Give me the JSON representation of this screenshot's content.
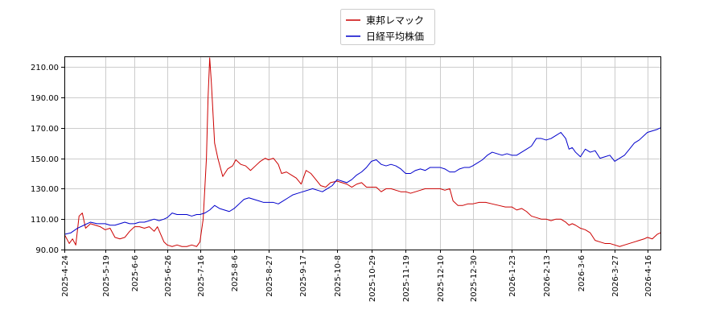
{
  "chart_data": {
    "type": "line",
    "title": "",
    "xlabel": "",
    "ylabel": "",
    "ylim": [
      90,
      217
    ],
    "xlim": [
      "2025-04-24",
      "2026-04-24"
    ],
    "grid": true,
    "legend_position": "top-center",
    "yticks": [
      90,
      110,
      130,
      150,
      170,
      190,
      210
    ],
    "ytick_labels": [
      "90.00",
      "110.00",
      "130.00",
      "150.00",
      "170.00",
      "190.00",
      "210.00"
    ],
    "xtick_labels": [
      "2025-4-24",
      "2025-5-19",
      "2025-6-6",
      "2025-6-26",
      "2025-7-16",
      "2025-8-6",
      "2025-8-27",
      "2025-9-17",
      "2025-10-8",
      "2025-10-29",
      "2025-11-19",
      "2025-12-10",
      "2025-12-30",
      "2026-1-23",
      "2026-2-13",
      "2026-3-6",
      "2026-3-27",
      "2026-4-16"
    ],
    "series": [
      {
        "name": "東邦レマック",
        "color": "#cc0000",
        "points": [
          [
            "2025-04-24",
            100
          ],
          [
            "2025-04-27",
            94
          ],
          [
            "2025-04-29",
            97
          ],
          [
            "2025-05-01",
            93
          ],
          [
            "2025-05-03",
            112
          ],
          [
            "2025-05-05",
            114
          ],
          [
            "2025-05-07",
            104
          ],
          [
            "2025-05-10",
            107
          ],
          [
            "2025-05-13",
            106
          ],
          [
            "2025-05-16",
            105
          ],
          [
            "2025-05-19",
            103
          ],
          [
            "2025-05-22",
            104
          ],
          [
            "2025-05-25",
            98
          ],
          [
            "2025-05-28",
            97
          ],
          [
            "2025-05-31",
            98
          ],
          [
            "2025-06-03",
            102
          ],
          [
            "2025-06-06",
            105
          ],
          [
            "2025-06-09",
            105
          ],
          [
            "2025-06-12",
            104
          ],
          [
            "2025-06-15",
            105
          ],
          [
            "2025-06-18",
            102
          ],
          [
            "2025-06-20",
            105
          ],
          [
            "2025-06-22",
            100
          ],
          [
            "2025-06-24",
            95
          ],
          [
            "2025-06-26",
            93
          ],
          [
            "2025-06-29",
            92
          ],
          [
            "2025-07-02",
            93
          ],
          [
            "2025-07-05",
            92
          ],
          [
            "2025-07-08",
            92
          ],
          [
            "2025-07-11",
            93
          ],
          [
            "2025-07-14",
            92
          ],
          [
            "2025-07-16",
            95
          ],
          [
            "2025-07-18",
            110
          ],
          [
            "2025-07-20",
            150
          ],
          [
            "2025-07-21",
            190
          ],
          [
            "2025-07-22",
            216
          ],
          [
            "2025-07-23",
            200
          ],
          [
            "2025-07-25",
            160
          ],
          [
            "2025-07-27",
            150
          ],
          [
            "2025-07-30",
            138
          ],
          [
            "2025-08-02",
            143
          ],
          [
            "2025-08-05",
            145
          ],
          [
            "2025-08-07",
            149
          ],
          [
            "2025-08-10",
            146
          ],
          [
            "2025-08-13",
            145
          ],
          [
            "2025-08-16",
            142
          ],
          [
            "2025-08-19",
            145
          ],
          [
            "2025-08-22",
            148
          ],
          [
            "2025-08-25",
            150
          ],
          [
            "2025-08-27",
            149
          ],
          [
            "2025-08-30",
            150
          ],
          [
            "2025-09-02",
            146
          ],
          [
            "2025-09-04",
            140
          ],
          [
            "2025-09-07",
            141
          ],
          [
            "2025-09-10",
            139
          ],
          [
            "2025-09-13",
            137
          ],
          [
            "2025-09-16",
            133
          ],
          [
            "2025-09-19",
            142
          ],
          [
            "2025-09-22",
            140
          ],
          [
            "2025-09-25",
            136
          ],
          [
            "2025-09-28",
            132
          ],
          [
            "2025-10-01",
            131
          ],
          [
            "2025-10-04",
            134
          ],
          [
            "2025-10-08",
            135
          ],
          [
            "2025-10-11",
            134
          ],
          [
            "2025-10-14",
            133
          ],
          [
            "2025-10-17",
            131
          ],
          [
            "2025-10-20",
            133
          ],
          [
            "2025-10-23",
            134
          ],
          [
            "2025-10-26",
            131
          ],
          [
            "2025-10-29",
            131
          ],
          [
            "2025-11-01",
            131
          ],
          [
            "2025-11-04",
            128
          ],
          [
            "2025-11-07",
            130
          ],
          [
            "2025-11-10",
            130
          ],
          [
            "2025-11-13",
            129
          ],
          [
            "2025-11-16",
            128
          ],
          [
            "2025-11-19",
            128
          ],
          [
            "2025-11-22",
            127
          ],
          [
            "2025-11-25",
            128
          ],
          [
            "2025-11-28",
            129
          ],
          [
            "2025-12-01",
            130
          ],
          [
            "2025-12-04",
            130
          ],
          [
            "2025-12-07",
            130
          ],
          [
            "2025-12-10",
            130
          ],
          [
            "2025-12-13",
            129
          ],
          [
            "2025-12-16",
            130
          ],
          [
            "2025-12-18",
            122
          ],
          [
            "2025-12-21",
            119
          ],
          [
            "2025-12-24",
            119
          ],
          [
            "2025-12-27",
            120
          ],
          [
            "2025-12-30",
            120
          ],
          [
            "2026-01-03",
            121
          ],
          [
            "2026-01-07",
            121
          ],
          [
            "2026-01-11",
            120
          ],
          [
            "2026-01-15",
            119
          ],
          [
            "2026-01-19",
            118
          ],
          [
            "2026-01-23",
            118
          ],
          [
            "2026-01-26",
            116
          ],
          [
            "2026-01-29",
            117
          ],
          [
            "2026-02-01",
            115
          ],
          [
            "2026-02-04",
            112
          ],
          [
            "2026-02-07",
            111
          ],
          [
            "2026-02-10",
            110
          ],
          [
            "2026-02-13",
            110
          ],
          [
            "2026-02-16",
            109
          ],
          [
            "2026-02-19",
            110
          ],
          [
            "2026-02-22",
            110
          ],
          [
            "2026-02-25",
            108
          ],
          [
            "2026-02-27",
            106
          ],
          [
            "2026-03-01",
            107
          ],
          [
            "2026-03-03",
            106
          ],
          [
            "2026-03-06",
            104
          ],
          [
            "2026-03-09",
            103
          ],
          [
            "2026-03-12",
            101
          ],
          [
            "2026-03-15",
            96
          ],
          [
            "2026-03-18",
            95
          ],
          [
            "2026-03-21",
            94
          ],
          [
            "2026-03-24",
            94
          ],
          [
            "2026-03-27",
            93
          ],
          [
            "2026-03-30",
            92
          ],
          [
            "2026-04-02",
            93
          ],
          [
            "2026-04-05",
            94
          ],
          [
            "2026-04-08",
            95
          ],
          [
            "2026-04-11",
            96
          ],
          [
            "2026-04-14",
            97
          ],
          [
            "2026-04-16",
            98
          ],
          [
            "2026-04-19",
            97
          ],
          [
            "2026-04-22",
            100
          ],
          [
            "2026-04-24",
            101
          ]
        ]
      },
      {
        "name": "日経平均株価",
        "color": "#0000cc",
        "points": [
          [
            "2025-04-24",
            100
          ],
          [
            "2025-04-28",
            101
          ],
          [
            "2025-05-02",
            104
          ],
          [
            "2025-05-06",
            106
          ],
          [
            "2025-05-10",
            108
          ],
          [
            "2025-05-14",
            107
          ],
          [
            "2025-05-19",
            107
          ],
          [
            "2025-05-22",
            106
          ],
          [
            "2025-05-25",
            106
          ],
          [
            "2025-05-28",
            107
          ],
          [
            "2025-05-31",
            108
          ],
          [
            "2025-06-03",
            107
          ],
          [
            "2025-06-06",
            107
          ],
          [
            "2025-06-09",
            108
          ],
          [
            "2025-06-12",
            108
          ],
          [
            "2025-06-15",
            109
          ],
          [
            "2025-06-18",
            110
          ],
          [
            "2025-06-21",
            109
          ],
          [
            "2025-06-24",
            110
          ],
          [
            "2025-06-26",
            111
          ],
          [
            "2025-06-29",
            114
          ],
          [
            "2025-07-02",
            113
          ],
          [
            "2025-07-05",
            113
          ],
          [
            "2025-07-08",
            113
          ],
          [
            "2025-07-11",
            112
          ],
          [
            "2025-07-14",
            113
          ],
          [
            "2025-07-16",
            113
          ],
          [
            "2025-07-19",
            114
          ],
          [
            "2025-07-22",
            116
          ],
          [
            "2025-07-25",
            119
          ],
          [
            "2025-07-28",
            117
          ],
          [
            "2025-07-31",
            116
          ],
          [
            "2025-08-03",
            115
          ],
          [
            "2025-08-06",
            117
          ],
          [
            "2025-08-09",
            120
          ],
          [
            "2025-08-12",
            123
          ],
          [
            "2025-08-15",
            124
          ],
          [
            "2025-08-18",
            123
          ],
          [
            "2025-08-21",
            122
          ],
          [
            "2025-08-24",
            121
          ],
          [
            "2025-08-27",
            121
          ],
          [
            "2025-08-30",
            121
          ],
          [
            "2025-09-02",
            120
          ],
          [
            "2025-09-05",
            122
          ],
          [
            "2025-09-08",
            124
          ],
          [
            "2025-09-11",
            126
          ],
          [
            "2025-09-14",
            127
          ],
          [
            "2025-09-17",
            128
          ],
          [
            "2025-09-20",
            129
          ],
          [
            "2025-09-23",
            130
          ],
          [
            "2025-09-26",
            129
          ],
          [
            "2025-09-29",
            128
          ],
          [
            "2025-10-02",
            130
          ],
          [
            "2025-10-05",
            132
          ],
          [
            "2025-10-08",
            136
          ],
          [
            "2025-10-11",
            135
          ],
          [
            "2025-10-14",
            134
          ],
          [
            "2025-10-17",
            136
          ],
          [
            "2025-10-20",
            139
          ],
          [
            "2025-10-23",
            141
          ],
          [
            "2025-10-26",
            144
          ],
          [
            "2025-10-29",
            148
          ],
          [
            "2025-11-01",
            149
          ],
          [
            "2025-11-04",
            146
          ],
          [
            "2025-11-07",
            145
          ],
          [
            "2025-11-10",
            146
          ],
          [
            "2025-11-13",
            145
          ],
          [
            "2025-11-16",
            143
          ],
          [
            "2025-11-19",
            140
          ],
          [
            "2025-11-22",
            140
          ],
          [
            "2025-11-25",
            142
          ],
          [
            "2025-11-28",
            143
          ],
          [
            "2025-12-01",
            142
          ],
          [
            "2025-12-04",
            144
          ],
          [
            "2025-12-07",
            144
          ],
          [
            "2025-12-10",
            144
          ],
          [
            "2025-12-13",
            143
          ],
          [
            "2025-12-16",
            141
          ],
          [
            "2025-12-19",
            141
          ],
          [
            "2025-12-22",
            143
          ],
          [
            "2025-12-25",
            144
          ],
          [
            "2025-12-28",
            144
          ],
          [
            "2025-12-30",
            145
          ],
          [
            "2026-01-02",
            147
          ],
          [
            "2026-01-05",
            149
          ],
          [
            "2026-01-08",
            152
          ],
          [
            "2026-01-11",
            154
          ],
          [
            "2026-01-14",
            153
          ],
          [
            "2026-01-17",
            152
          ],
          [
            "2026-01-20",
            153
          ],
          [
            "2026-01-23",
            152
          ],
          [
            "2026-01-26",
            152
          ],
          [
            "2026-01-29",
            154
          ],
          [
            "2026-02-01",
            156
          ],
          [
            "2026-02-04",
            158
          ],
          [
            "2026-02-07",
            163
          ],
          [
            "2026-02-10",
            163
          ],
          [
            "2026-02-13",
            162
          ],
          [
            "2026-02-16",
            163
          ],
          [
            "2026-02-19",
            165
          ],
          [
            "2026-02-22",
            167
          ],
          [
            "2026-02-25",
            163
          ],
          [
            "2026-02-27",
            156
          ],
          [
            "2026-03-01",
            157
          ],
          [
            "2026-03-03",
            154
          ],
          [
            "2026-03-06",
            151
          ],
          [
            "2026-03-09",
            156
          ],
          [
            "2026-03-12",
            154
          ],
          [
            "2026-03-15",
            155
          ],
          [
            "2026-03-18",
            150
          ],
          [
            "2026-03-21",
            151
          ],
          [
            "2026-03-24",
            152
          ],
          [
            "2026-03-27",
            148
          ],
          [
            "2026-03-30",
            150
          ],
          [
            "2026-04-02",
            152
          ],
          [
            "2026-04-05",
            156
          ],
          [
            "2026-04-08",
            160
          ],
          [
            "2026-04-11",
            162
          ],
          [
            "2026-04-14",
            165
          ],
          [
            "2026-04-16",
            167
          ],
          [
            "2026-04-19",
            168
          ],
          [
            "2026-04-22",
            169
          ],
          [
            "2026-04-24",
            170
          ]
        ]
      }
    ]
  }
}
